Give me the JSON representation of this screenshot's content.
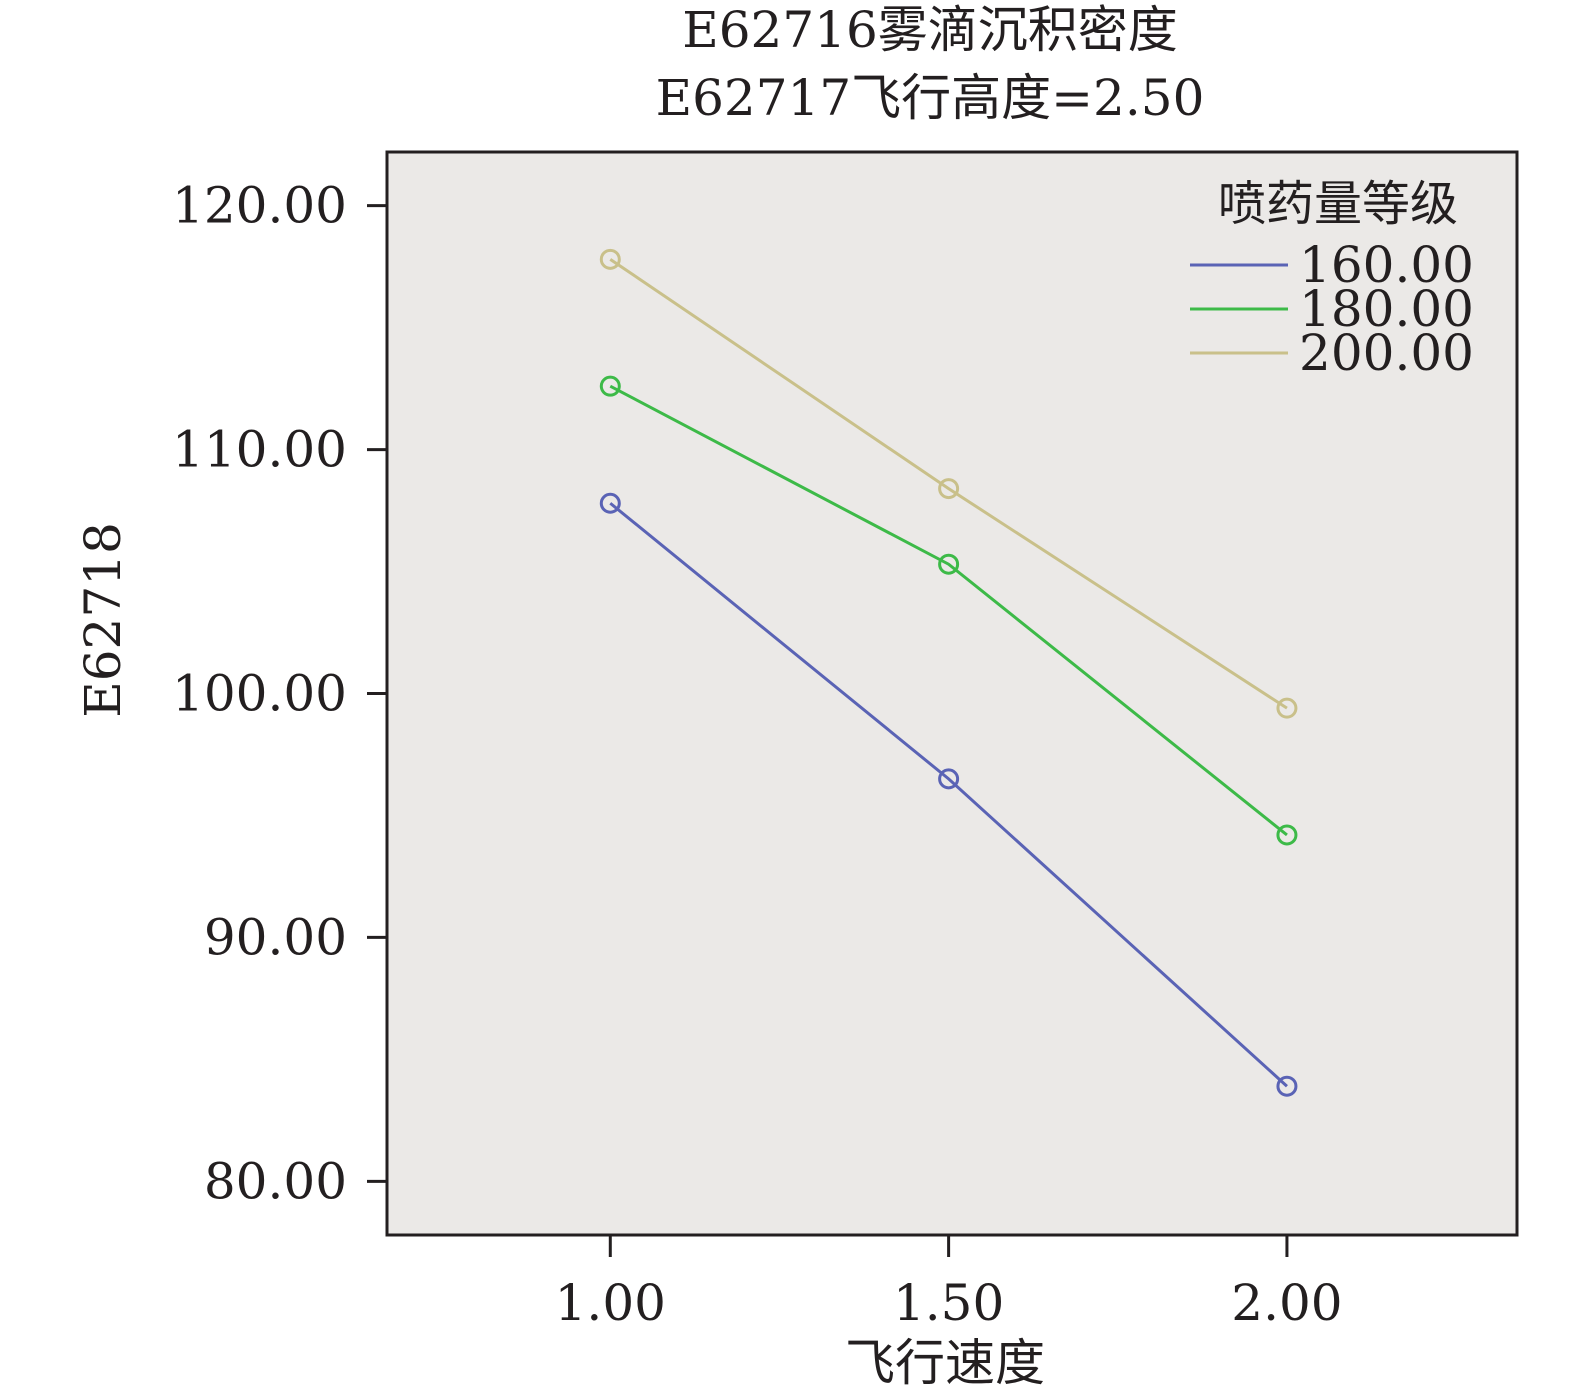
{
  "chart_data": {
    "type": "line",
    "title": "E62716雾滴沉积密度",
    "subtitle": "E62717飞行高度=2.50",
    "xlabel": "飞行速度",
    "ylabel": "E62718",
    "x": [
      1.0,
      1.5,
      2.0
    ],
    "x_tick_labels": [
      "1.00",
      "1.50",
      "2.00"
    ],
    "y_tick_values": [
      80,
      90,
      100,
      110,
      120
    ],
    "y_tick_labels": [
      "80.00",
      "90.00",
      "100.00",
      "110.00",
      "120.00"
    ],
    "ylim": [
      77.8,
      122.2
    ],
    "xlim": [
      0.67,
      2.34
    ],
    "grid": false,
    "marker": "open-circle",
    "legend_title": "喷药量等级",
    "legend_position": "top-right",
    "series": [
      {
        "name": "160.00",
        "color": "#5a63b5",
        "values": [
          107.8,
          96.5,
          83.9
        ]
      },
      {
        "name": "180.00",
        "color": "#3dba48",
        "values": [
          112.6,
          105.3,
          94.2
        ]
      },
      {
        "name": "200.00",
        "color": "#c9c08a",
        "values": [
          117.8,
          108.4,
          99.4
        ]
      }
    ],
    "plot_background": "#ebe9e7"
  }
}
